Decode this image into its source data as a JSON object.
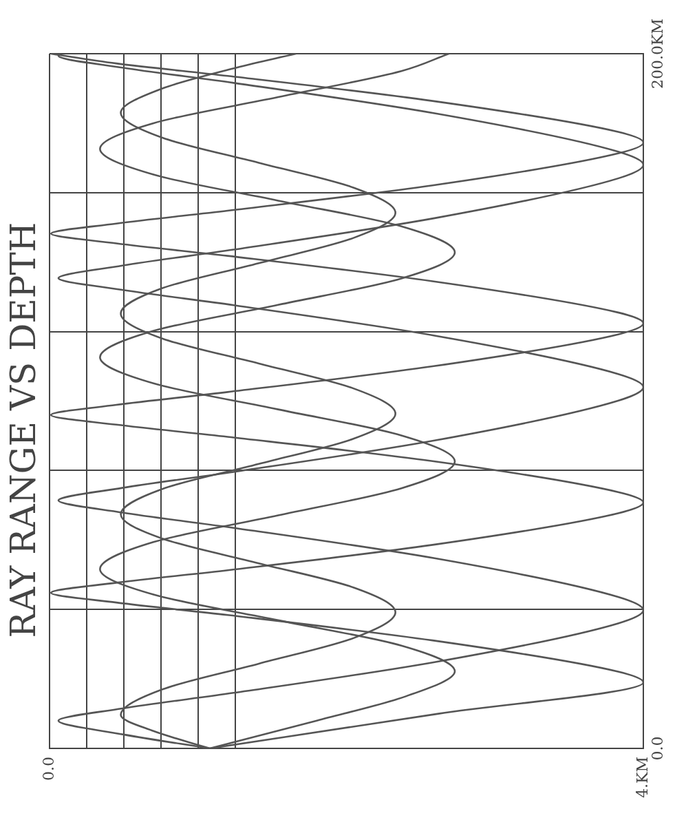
{
  "chart_data": {
    "type": "line",
    "title": "RAY RANGE VS DEPTH",
    "xlim": [
      0,
      4
    ],
    "xticks": [
      {
        "value": 0,
        "label": "0.0"
      },
      {
        "value": 0.25,
        "label": null
      },
      {
        "value": 0.5,
        "label": null
      },
      {
        "value": 0.75,
        "label": null
      },
      {
        "value": 1,
        "label": null
      },
      {
        "value": 1.25,
        "label": null
      },
      {
        "value": 4,
        "label": "4.KM"
      }
    ],
    "ylim": [
      0,
      200
    ],
    "yticks": [
      {
        "value": 0,
        "label": "0.0"
      },
      {
        "value": 40,
        "label": null
      },
      {
        "value": 80,
        "label": null
      },
      {
        "value": 120,
        "label": null
      },
      {
        "value": 160,
        "label": null
      },
      {
        "value": 200,
        "label": "200.0KM"
      }
    ],
    "grid": true,
    "marker": "none",
    "legend": false,
    "series": [
      {
        "color": "#555555",
        "x": [
          1.08,
          0.7,
          0.48,
          0.76,
          1.41,
          2.05,
          2.33,
          2.05,
          1.41,
          0.76,
          0.48,
          0.76,
          1.41,
          2.05,
          2.33,
          2.05,
          1.41,
          0.76,
          0.48,
          0.76,
          1.41,
          2.05,
          2.33,
          2.05,
          1.41,
          0.76,
          0.48,
          0.76,
          1.26,
          1.66
        ],
        "values": [
          0,
          5,
          9.6,
          17,
          24.4,
          31.8,
          39.2,
          46.3,
          53.3,
          60.4,
          67.4,
          74.7,
          81.9,
          89.2,
          96.4,
          103.6,
          110.8,
          118,
          125.2,
          132.5,
          139.7,
          147,
          154.2,
          161.4,
          168.6,
          175.8,
          183,
          190,
          196,
          200
        ]
      },
      {
        "color": "#555555",
        "x": [
          1.08,
          1.8,
          2.4,
          2.73,
          2.37,
          1.54,
          0.7,
          0.34,
          0.7,
          1.54,
          2.37,
          2.73,
          2.37,
          1.54,
          0.7,
          0.34,
          0.7,
          1.54,
          2.37,
          2.73,
          2.37,
          1.54,
          0.7,
          0.34,
          0.7,
          1.54,
          2.37,
          2.69
        ],
        "values": [
          0,
          8,
          15,
          22.2,
          29.6,
          36.9,
          44.3,
          51.6,
          59.4,
          67.1,
          74.9,
          82.6,
          90.1,
          97.6,
          105.1,
          112.6,
          120.2,
          127.7,
          135.3,
          142.8,
          150.3,
          157.7,
          165.2,
          172.6,
          180,
          187.5,
          195,
          200
        ]
      },
      {
        "color": "#555555",
        "x": [
          1.08,
          0.5,
          0.06,
          0.49,
          1.24,
          2.6,
          3.83,
          4,
          3.83,
          2.6,
          1.24,
          0.49,
          0.06,
          0.49,
          1.24,
          2.6,
          3.83,
          4,
          3.83,
          2.6,
          1.24,
          0.49,
          0.06,
          0.49,
          1.24,
          2.6,
          3.83,
          4,
          3.83,
          2.6,
          1.24,
          0.49,
          0.06,
          0.07
        ],
        "values": [
          0,
          4,
          8,
          11.5,
          16,
          24.9,
          36,
          39.8,
          43.6,
          54.7,
          63.5,
          67.9,
          71.4,
          75,
          79.6,
          88.7,
          100.1,
          104,
          107.8,
          118.8,
          127.6,
          132,
          135.4,
          139,
          143.6,
          152.7,
          164.1,
          168,
          171.8,
          182.8,
          191.6,
          196,
          199.4,
          200
        ]
      },
      {
        "color": "#555555",
        "x": [
          1.08,
          2.62,
          4,
          3.83,
          2.58,
          1.2,
          0.45,
          0.01,
          0.45,
          1.2,
          2.58,
          3.83,
          4,
          3.83,
          2.58,
          1.2,
          0.45,
          0.01,
          0.45,
          1.2,
          2.58,
          3.83,
          4,
          3.83,
          2.58,
          1.2,
          0.45,
          0.01,
          0.45,
          1.2,
          2.58,
          3.83,
          4,
          3.83,
          2.58,
          1.2,
          0.45,
          0.01
        ],
        "values": [
          0,
          10,
          19,
          22.1,
          31.1,
          38.4,
          42,
          44.8,
          47.7,
          51.3,
          58.6,
          67.7,
          70.8,
          73.8,
          82.7,
          89.7,
          93.2,
          96,
          98.9,
          102.6,
          110,
          119.2,
          122.4,
          125.5,
          134.5,
          141.8,
          145.4,
          148.2,
          151.1,
          154.8,
          162.1,
          171.3,
          174.4,
          177.5,
          186.4,
          193.6,
          197.2,
          200
        ]
      }
    ]
  }
}
